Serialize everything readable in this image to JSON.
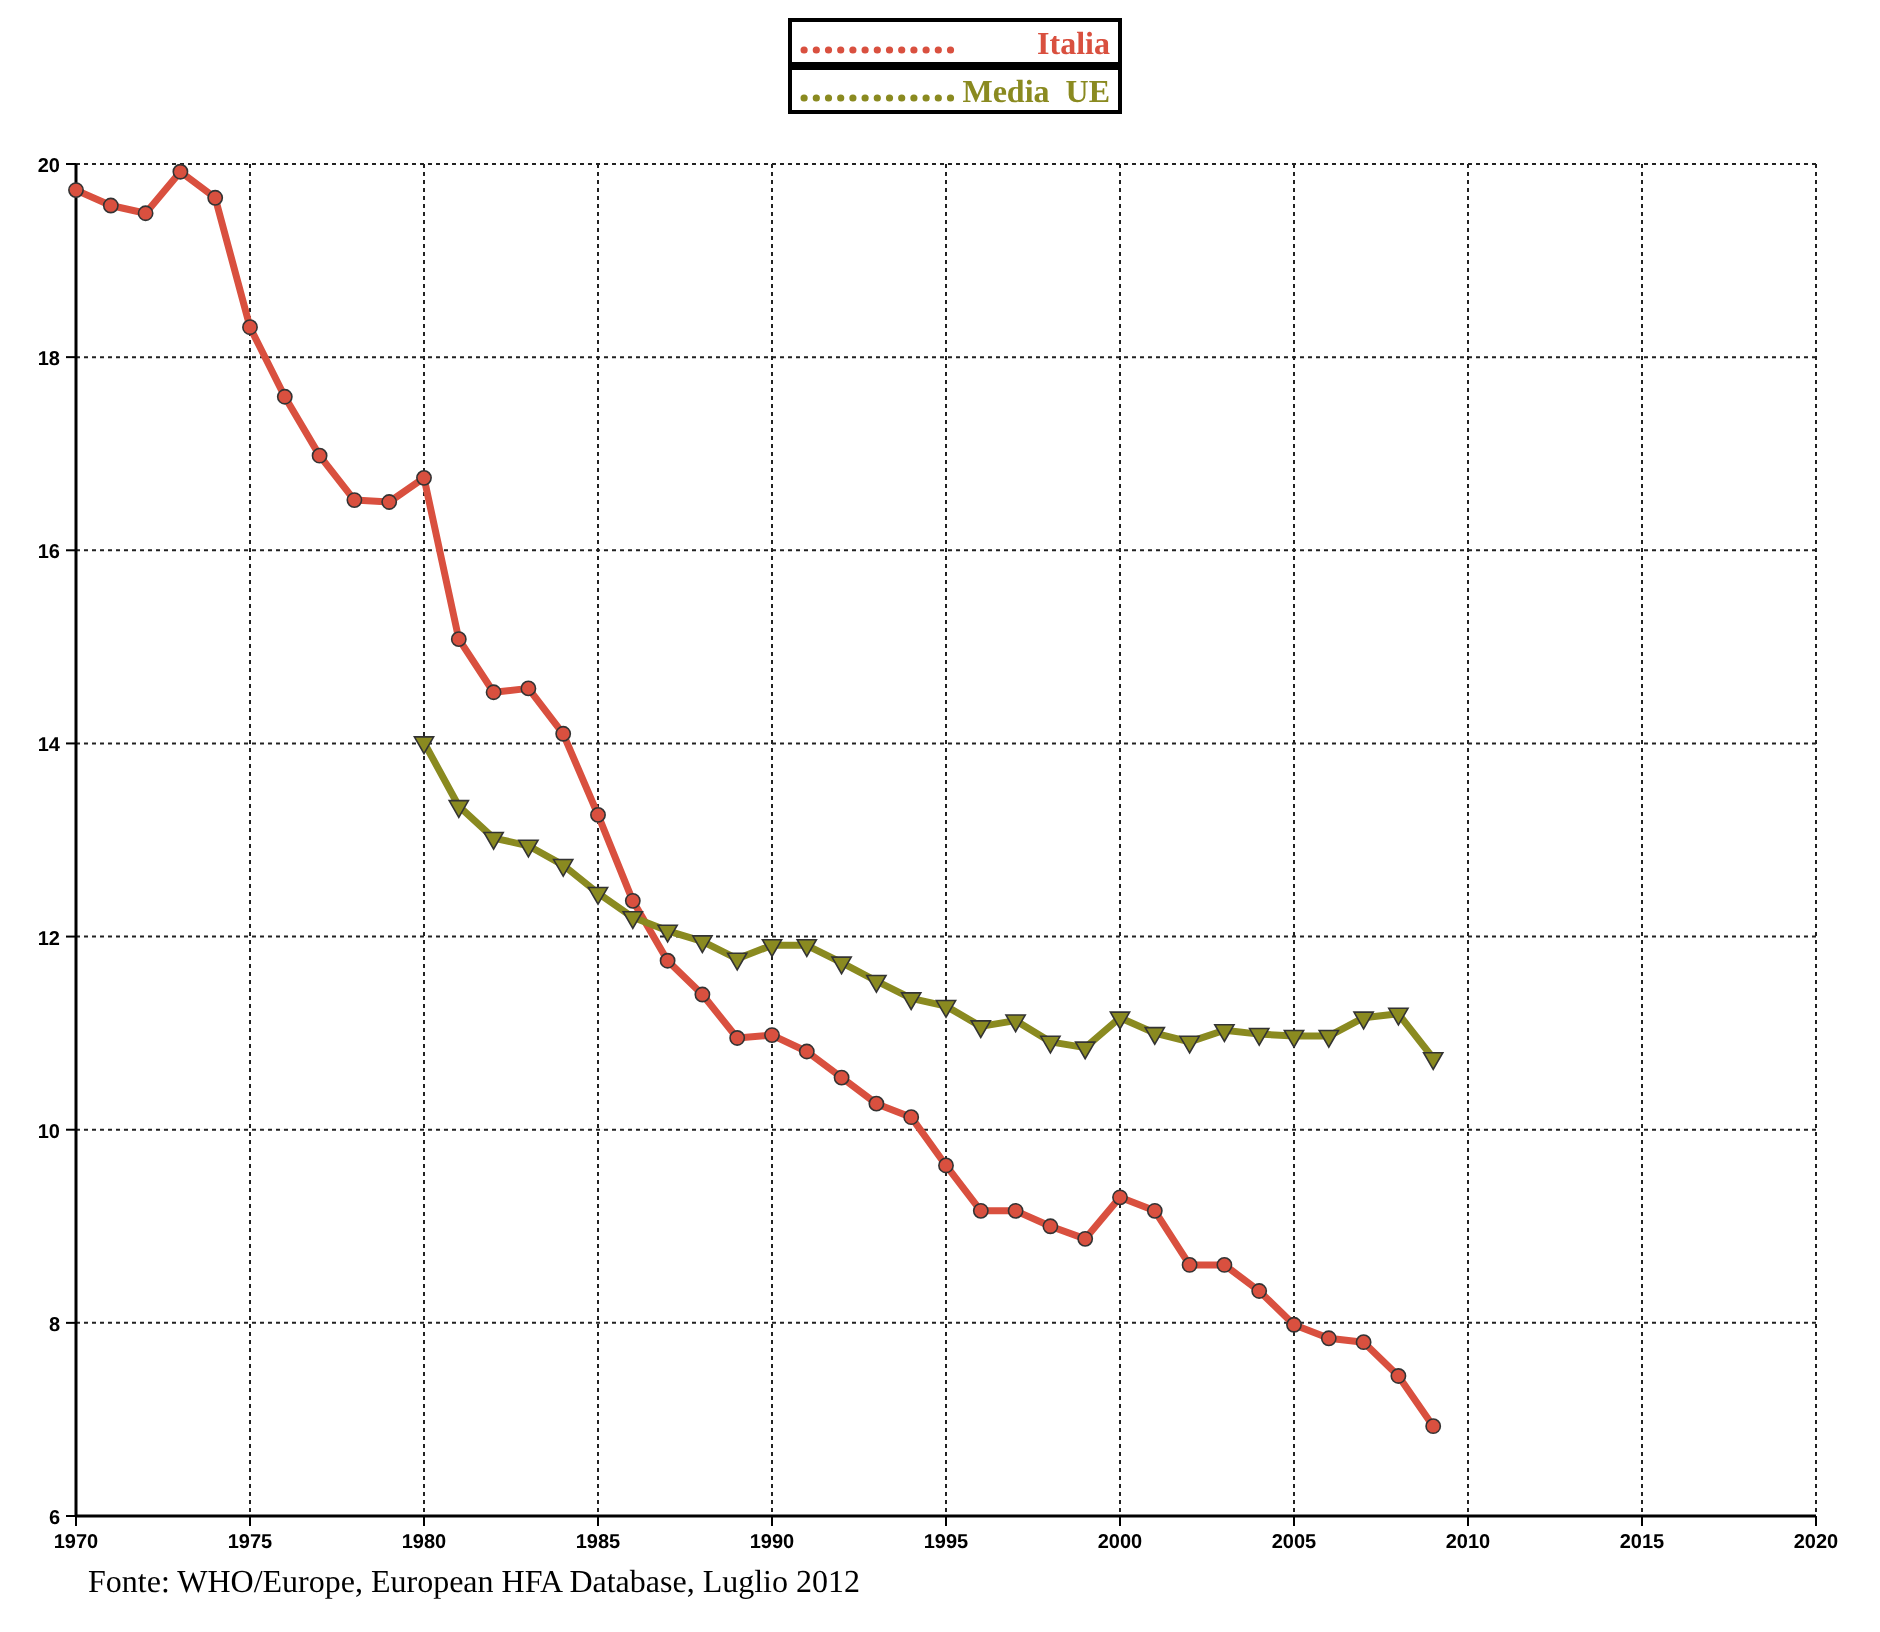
{
  "chart_data": {
    "type": "line",
    "x": [
      1970,
      1971,
      1972,
      1973,
      1974,
      1975,
      1976,
      1977,
      1978,
      1979,
      1980,
      1981,
      1982,
      1983,
      1984,
      1985,
      1986,
      1987,
      1988,
      1989,
      1990,
      1991,
      1992,
      1993,
      1994,
      1995,
      1996,
      1997,
      1998,
      1999,
      2000,
      2001,
      2002,
      2003,
      2004,
      2005,
      2006,
      2007,
      2008,
      2009
    ],
    "series": [
      {
        "name": "Italia",
        "color": "#d9503f",
        "marker": "circle",
        "values": [
          19.73,
          19.57,
          19.49,
          19.92,
          19.65,
          18.31,
          17.59,
          16.98,
          16.52,
          16.5,
          16.75,
          15.08,
          14.53,
          14.57,
          14.1,
          13.26,
          12.37,
          11.75,
          11.4,
          10.95,
          10.98,
          10.81,
          10.54,
          10.27,
          10.13,
          9.63,
          9.16,
          9.16,
          9.0,
          8.87,
          9.3,
          9.16,
          8.6,
          8.6,
          8.33,
          7.98,
          7.84,
          7.8,
          7.45,
          6.93
        ]
      },
      {
        "name": "Media  UE",
        "color": "#8a8a20",
        "marker": "triangle",
        "values": [
          null,
          null,
          null,
          null,
          null,
          null,
          null,
          null,
          null,
          null,
          14.01,
          13.35,
          13.02,
          12.94,
          12.74,
          12.45,
          12.2,
          12.06,
          11.95,
          11.77,
          11.91,
          11.91,
          11.73,
          11.54,
          11.36,
          11.28,
          11.07,
          11.13,
          10.91,
          10.85,
          11.16,
          11.0,
          10.91,
          11.03,
          10.99,
          10.97,
          10.97,
          11.16,
          11.2,
          10.74
        ]
      }
    ],
    "xlim": [
      1970,
      2020
    ],
    "xticks": [
      1970,
      1975,
      1980,
      1985,
      1990,
      1995,
      2000,
      2005,
      2010,
      2015,
      2020
    ],
    "ylim": [
      6,
      20
    ],
    "yticks": [
      6,
      8,
      10,
      12,
      14,
      16,
      18,
      20
    ],
    "grid": true,
    "legend": "top",
    "line_style": "solid",
    "annotations": [
      "Fonte: WHO/Europe, European HFA Database, Luglio 2012"
    ]
  }
}
